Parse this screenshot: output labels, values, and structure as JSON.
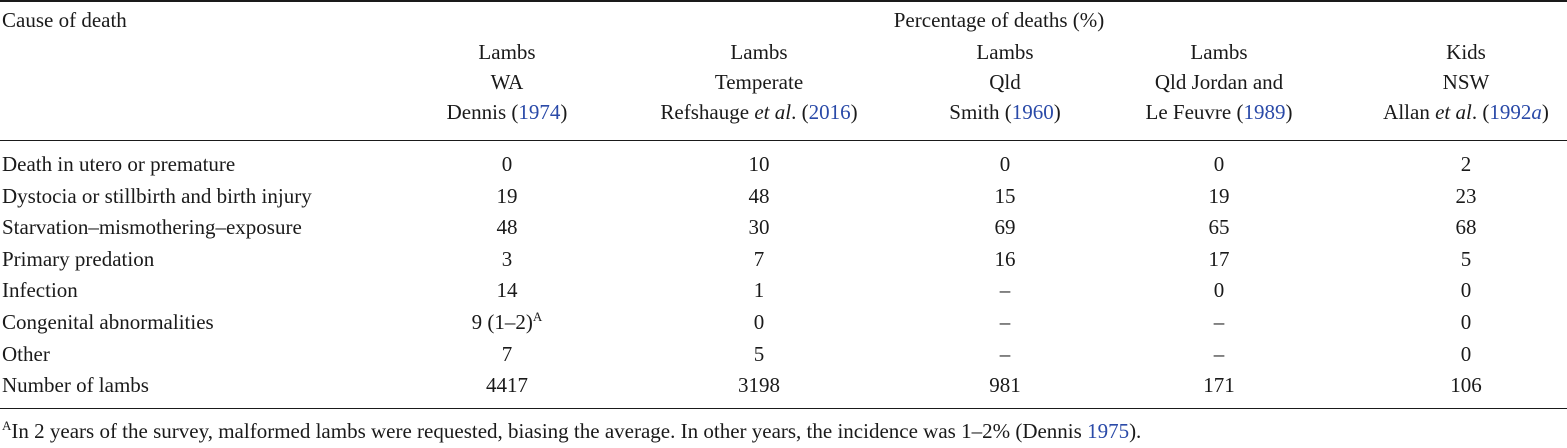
{
  "table": {
    "row_header": "Cause of death",
    "spanner": "Percentage of deaths (%)",
    "columns": [
      {
        "line1": "Lambs",
        "line2": "WA",
        "author_pre": "Dennis (",
        "author_italic": "",
        "year": "1974",
        "year_italic": "",
        "author_post": ")"
      },
      {
        "line1": "Lambs",
        "line2": "Temperate",
        "author_pre": "Refshauge ",
        "author_italic": "et al",
        "author_mid": ". (",
        "year": "2016",
        "year_italic": "",
        "author_post": ")"
      },
      {
        "line1": "Lambs",
        "line2": "Qld",
        "author_pre": "Smith (",
        "author_italic": "",
        "year": "1960",
        "year_italic": "",
        "author_post": ")"
      },
      {
        "line1": "Lambs",
        "line2": "Qld Jordan and",
        "author_pre": "Le Feuvre (",
        "author_italic": "",
        "year": "1989",
        "year_italic": "",
        "author_post": ")"
      },
      {
        "line1": "Kids",
        "line2": "NSW",
        "author_pre": "Allan ",
        "author_italic": "et al",
        "author_mid": ". (",
        "year": "1992",
        "year_italic": "a",
        "author_post": ")"
      }
    ],
    "rows": [
      {
        "label": "Death in utero or premature",
        "values": [
          "0",
          "10",
          "0",
          "0",
          "2"
        ]
      },
      {
        "label": "Dystocia or stillbirth and birth injury",
        "values": [
          "19",
          "48",
          "15",
          "19",
          "23"
        ]
      },
      {
        "label": "Starvation–mismothering–exposure",
        "values": [
          "48",
          "30",
          "69",
          "65",
          "68"
        ]
      },
      {
        "label": "Primary predation",
        "values": [
          "3",
          "7",
          "16",
          "17",
          "5"
        ]
      },
      {
        "label": "Infection",
        "values": [
          "14",
          "1",
          "–",
          "0",
          "0"
        ]
      },
      {
        "label": "Congenital abnormalities",
        "values": [
          "9 (1–2)",
          "0",
          "–",
          "–",
          "0"
        ],
        "first_sup": "A"
      },
      {
        "label": "Other",
        "values": [
          "7",
          "5",
          "–",
          "–",
          "0"
        ]
      },
      {
        "label": "Number of lambs",
        "values": [
          "4417",
          "3198",
          "981",
          "171",
          "106"
        ]
      }
    ],
    "footnote": {
      "marker": "A",
      "text": "In 2 years of the survey, malformed lambs were requested, biasing the average. In other years, the incidence was 1–2% (Dennis ",
      "year": "1975",
      "close": ")."
    }
  }
}
